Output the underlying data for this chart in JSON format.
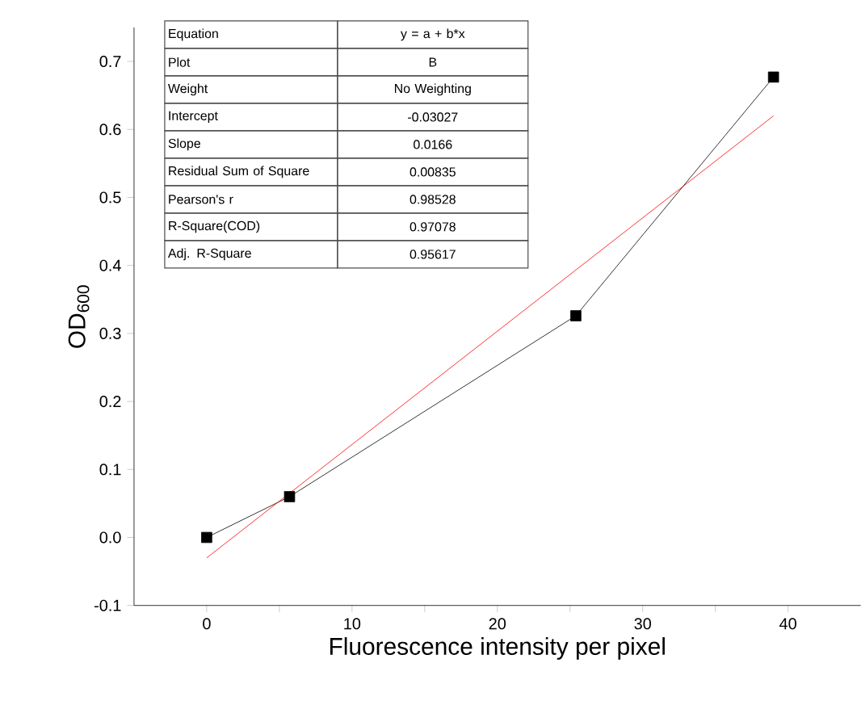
{
  "chart_data": {
    "type": "line",
    "xlabel": "Fluorescence intensity per pixel",
    "ylabel": "OD$_{600}$",
    "xlim": [
      -5,
      45
    ],
    "ylim": [
      -0.1,
      0.75
    ],
    "xticks": [
      0,
      {
        "value": 5,
        "label": null
      },
      10,
      {
        "value": 15,
        "label": null
      },
      20,
      {
        "value": 25,
        "label": null
      },
      30,
      {
        "value": 35,
        "label": null
      },
      40
    ],
    "yticks": [
      -0.1,
      {
        "value": 0,
        "label": "0.0"
      },
      0.1,
      0.2,
      0.3,
      0.4,
      0.5,
      0.6,
      0.7
    ],
    "grid": false,
    "series": [
      {
        "color": "#000000",
        "marker": "square",
        "x": [
          0,
          5.7,
          25.4,
          39
        ],
        "values": [
          0,
          0.06,
          0.326,
          0.677
        ]
      },
      {
        "color": "#ff0000",
        "marker": "none",
        "x": [
          0,
          39
        ],
        "values": [
          -0.03,
          0.62
        ]
      }
    ],
    "annotations": [
      "Equation",
      "y = a + b*x",
      "Plot",
      "B",
      "Weight",
      "No Weighting",
      "Intercept",
      "-0.03027",
      "Slope",
      "0.0166",
      "Residual Sum of Square",
      "0.00835",
      "Pearson's r",
      "0.98528",
      "R-Square(COD)",
      "0.97078",
      "Adj. R-Square",
      "0.95617"
    ]
  }
}
